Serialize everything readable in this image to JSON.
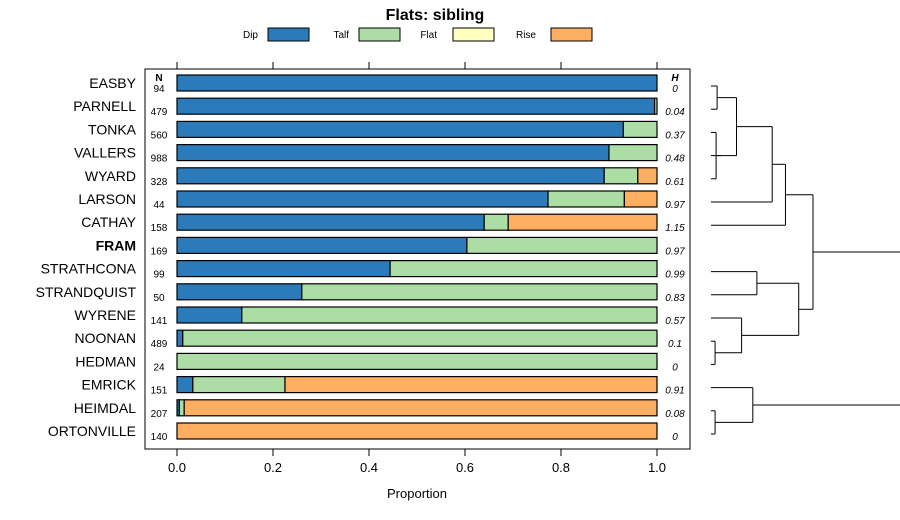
{
  "chart_data": {
    "type": "bar",
    "orientation": "horizontal",
    "stacked": true,
    "title": "Flats: sibling",
    "xlabel": "Proportion",
    "ylabel": "",
    "xlim": [
      0,
      1
    ],
    "x_ticks": [
      "0.0",
      "0.2",
      "0.4",
      "0.6",
      "0.8",
      "1.0"
    ],
    "x_tick_values": [
      0,
      0.2,
      0.4,
      0.6,
      0.8,
      1.0
    ],
    "n_header": "N",
    "h_header": "H",
    "legend": [
      {
        "name": "Dip",
        "color": "#2b7bba"
      },
      {
        "name": "Talf",
        "color": "#abdda4"
      },
      {
        "name": "Flat",
        "color": "#ffffbf"
      },
      {
        "name": "Rise",
        "color": "#fdae61"
      }
    ],
    "categories": [
      "EASBY",
      "PARNELL",
      "TONKA",
      "VALLERS",
      "WYARD",
      "LARSON",
      "CATHAY",
      "FRAM",
      "STRATHCONA",
      "STRANDQUIST",
      "WYRENE",
      "NOONAN",
      "HEDMAN",
      "EMRICK",
      "HEIMDAL",
      "ORTONVILLE"
    ],
    "highlight": "FRAM",
    "n": [
      "94",
      "479",
      "560",
      "988",
      "328",
      "44",
      "158",
      "169",
      "99",
      "50",
      "141",
      "489",
      "24",
      "151",
      "207",
      "140"
    ],
    "h": [
      "0",
      "0.04",
      "0.37",
      "0.48",
      "0.61",
      "0.97",
      "1.15",
      "0.97",
      "0.99",
      "0.83",
      "0.57",
      "0.1",
      "0",
      "0.91",
      "0.08",
      "0"
    ],
    "series": [
      {
        "name": "Dip",
        "values": [
          1.0,
          0.995,
          0.93,
          0.9,
          0.89,
          0.773,
          0.64,
          0.604,
          0.444,
          0.26,
          0.135,
          0.012,
          0.0,
          0.033,
          0.005,
          0.0
        ]
      },
      {
        "name": "Talf",
        "values": [
          0.0,
          0.005,
          0.07,
          0.1,
          0.07,
          0.159,
          0.05,
          0.396,
          0.556,
          0.74,
          0.865,
          0.988,
          1.0,
          0.192,
          0.01,
          0.0
        ]
      },
      {
        "name": "Flat",
        "values": [
          0,
          0,
          0,
          0,
          0,
          0,
          0,
          0,
          0,
          0,
          0,
          0,
          0,
          0,
          0,
          0
        ]
      },
      {
        "name": "Rise",
        "values": [
          0.0,
          0.0,
          0.0,
          0.0,
          0.04,
          0.068,
          0.31,
          0.0,
          0.0,
          0.0,
          0.0,
          0.0,
          0.0,
          0.775,
          0.985,
          1.0
        ]
      }
    ],
    "dendrogram": {
      "merges": [
        [
          0,
          1,
          0.06
        ],
        [
          2,
          4,
          0.05
        ],
        [
          3,
          17,
          0.1
        ],
        [
          16,
          18,
          0.25
        ],
        [
          19,
          5,
          0.6
        ],
        [
          20,
          6,
          0.73
        ],
        [
          8,
          9,
          0.45
        ],
        [
          12,
          11,
          0.04
        ],
        [
          10,
          23,
          0.3
        ],
        [
          22,
          24,
          0.86
        ],
        [
          21,
          25,
          1.0
        ],
        [
          14,
          15,
          0.04
        ],
        [
          13,
          27,
          0.41
        ],
        [
          26,
          28,
          1.9
        ]
      ]
    }
  }
}
